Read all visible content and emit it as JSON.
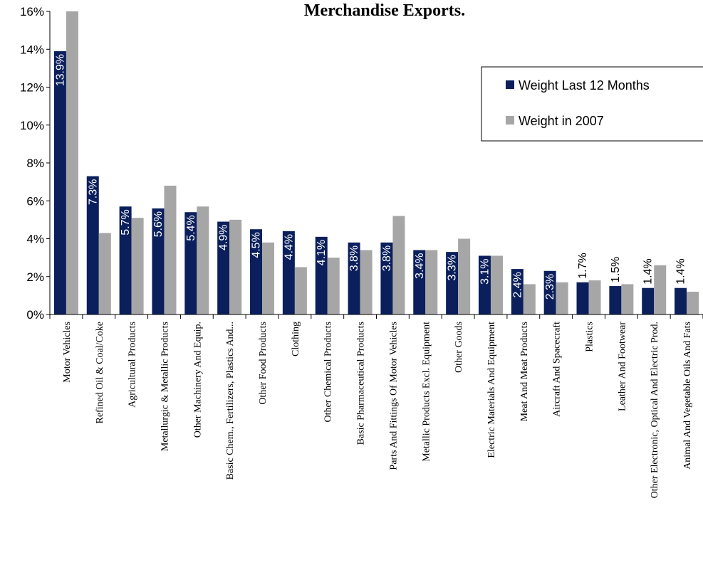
{
  "chart_data": {
    "type": "bar",
    "title": "Merchandise Exports.",
    "xlabel": "",
    "ylabel": "",
    "ylim": [
      0,
      0.16
    ],
    "yticks": [
      "0%",
      "2%",
      "4%",
      "6%",
      "8%",
      "10%",
      "12%",
      "14%",
      "16%"
    ],
    "grid": false,
    "legend_position": "top-right",
    "categories": [
      "Motor Vehicles",
      "Refined Oil & Coal/Coke",
      "Agricultural Products",
      "Metallurgic & Metallic Products",
      "Other Machinery And Equip.",
      "Basic Chem., Fertilizers, Plastics And...",
      "Other Food Products",
      "Clothing",
      "Other Chemical Products",
      "Basic Pharmaceutical Products",
      "Parts And Fittings Of Motor Vehicles",
      "Metallic Products Excl. Equipment",
      "Other Goods",
      "Electric Materials And Equipment",
      "Meat And Meat Products",
      "Aircraft And Spacecraft",
      "Plastics",
      "Leather And Footwear",
      "Other Electronic, Optical And Electric Prod.",
      "Animal And Vegetable Oils And Fats"
    ],
    "series": [
      {
        "name": "Weight Last 12 Months",
        "color": "#0a1f5c",
        "values": [
          0.139,
          0.073,
          0.057,
          0.056,
          0.054,
          0.049,
          0.045,
          0.044,
          0.041,
          0.038,
          0.038,
          0.034,
          0.033,
          0.031,
          0.024,
          0.023,
          0.017,
          0.015,
          0.014,
          0.014
        ],
        "labels": [
          "13.9%",
          "7.3%",
          "5.7%",
          "5.6%",
          "5.4%",
          "4.9%",
          "4.5%",
          "4.4%",
          "4.1%",
          "3.8%",
          "3.8%",
          "3.4%",
          "3.3%",
          "3.1%",
          "2.4%",
          "2.3%",
          "1.7%",
          "1.5%",
          "1.4%",
          "1.4%"
        ]
      },
      {
        "name": "Weight in 2007",
        "color": "#a6a6a6",
        "values": [
          0.16,
          0.043,
          0.051,
          0.068,
          0.057,
          0.05,
          0.038,
          0.025,
          0.03,
          0.034,
          0.052,
          0.034,
          0.04,
          0.031,
          0.016,
          0.017,
          0.018,
          0.016,
          0.026,
          0.012
        ]
      }
    ]
  }
}
